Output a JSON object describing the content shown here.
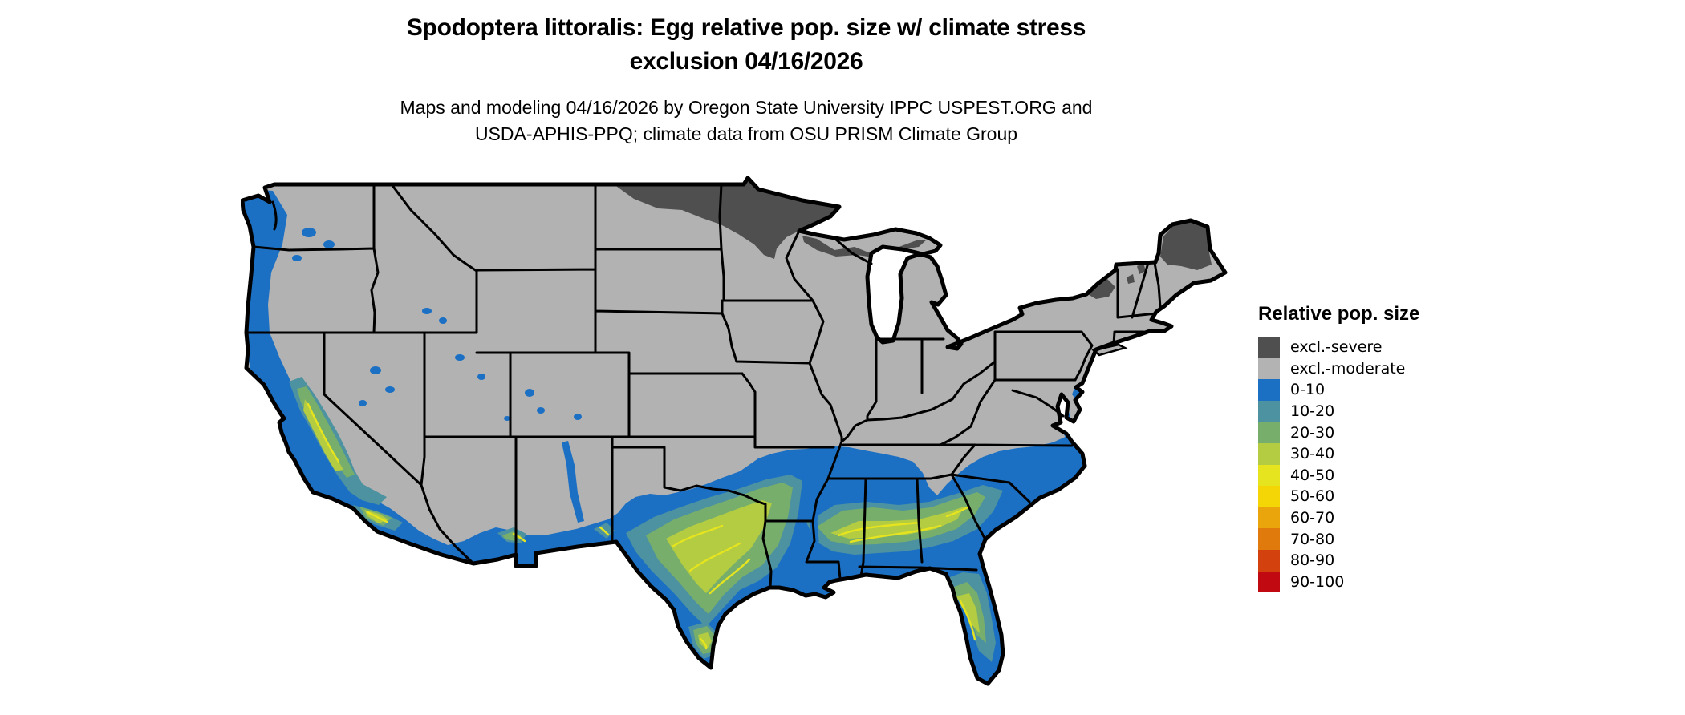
{
  "figure": {
    "title_line1": "Spodoptera littoralis: Egg relative pop. size w/ climate stress",
    "title_line2": "exclusion 04/16/2026",
    "subtitle_line1": "Maps and modeling 04/16/2026 by Oregon State University IPPC USPEST.ORG and",
    "subtitle_line2": "USDA-APHIS-PPQ; climate data from OSU PRISM Climate Group"
  },
  "legend": {
    "title": "Relative pop. size",
    "entries": [
      {
        "label": "excl.-severe",
        "color": "#4f4f4f"
      },
      {
        "label": "excl.-moderate",
        "color": "#b3b3b3"
      },
      {
        "label": "0-10",
        "color": "#1b70c4"
      },
      {
        "label": "10-20",
        "color": "#4d92a0"
      },
      {
        "label": "20-30",
        "color": "#77ae6c"
      },
      {
        "label": "30-40",
        "color": "#b3cc41"
      },
      {
        "label": "40-50",
        "color": "#e6e41f"
      },
      {
        "label": "50-60",
        "color": "#f4d606"
      },
      {
        "label": "60-70",
        "color": "#eaa40c"
      },
      {
        "label": "70-80",
        "color": "#e07a0d"
      },
      {
        "label": "80-90",
        "color": "#d2410e"
      },
      {
        "label": "90-100",
        "color": "#c00910"
      }
    ]
  },
  "map": {
    "base_land_color": "#b2b2b2",
    "background_color": "#ffffff",
    "boundary_color": "#000000",
    "region_summary": {
      "excl_severe": "northern Minnesota with adjacent eastern North Dakota, northern Wisconsin and upper Michigan; northern Maine; Adirondacks of New York; small patches in northern New Hampshire, Vermont and northern lower Michigan",
      "excl_moderate": "most northern, interior and Appalachian states (base gray)",
      "pop_0_10": "Pacific coastal strip, scattered interior-West valleys, southern Arizona/New Mexico, southern Great Plains, Mississippi valley, Tennessee southward, Gulf and south Atlantic coastal plain, Chesapeake shores, Florida coasts",
      "pop_10_40": "California Central Valley and southern California coast, southern Arizona spots, central Texas through the Deep South (Mississippi, Alabama, Georgia, South Carolina), southern Texas, central Florida",
      "pop_40_100": "only thin 40-50 contour traces inside the warmest southern cores"
    }
  }
}
